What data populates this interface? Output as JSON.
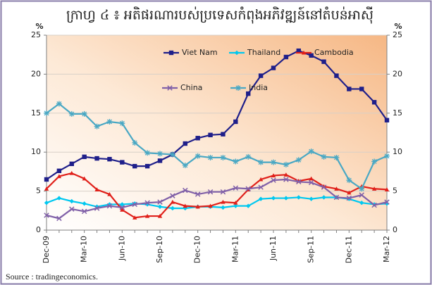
{
  "chart_data": {
    "type": "line",
    "title": "ក្រាហ្វ ៤ ៖ អតិផរណារបស់ប្រទេសកំពុងអភិវឌ្ឍន៍នៅតំបន់អាស៊ី",
    "y_label": "%",
    "y2_label": "%",
    "source": "Source : tradingeconomics.",
    "categories": [
      "Dec-09",
      null,
      null,
      "Mar-10",
      null,
      null,
      "Jun-10",
      null,
      null,
      "Sep-10",
      null,
      null,
      "Dec-10",
      null,
      null,
      "Mar-11",
      null,
      null,
      "Jun-11",
      null,
      null,
      "Sep-11",
      null,
      null,
      "Dec-11",
      null,
      null,
      "Mar-12"
    ],
    "ylim": [
      0,
      25
    ],
    "yticks": [
      0,
      5,
      10,
      15,
      20,
      25
    ],
    "y2lim": [
      0,
      25
    ],
    "y2ticks": [
      0,
      5,
      10,
      15,
      20,
      25
    ],
    "grid": true,
    "series": [
      {
        "name": "Viet Nam",
        "color": "#1f1f8a",
        "marker": "square",
        "values": [
          6.5,
          7.6,
          8.5,
          9.4,
          9.2,
          9.1,
          8.7,
          8.2,
          8.2,
          8.9,
          9.7,
          11.1,
          11.8,
          12.2,
          12.3,
          13.9,
          17.5,
          19.8,
          20.8,
          22.2,
          23.0,
          22.4,
          21.6,
          19.8,
          18.1,
          18.1,
          16.4,
          14.1
        ]
      },
      {
        "name": "Thailand",
        "color": "#00c8f0",
        "marker": "diamond",
        "values": [
          3.5,
          4.1,
          3.7,
          3.4,
          3.0,
          3.3,
          3.3,
          3.4,
          3.3,
          3.0,
          2.8,
          2.8,
          3.0,
          3.0,
          2.9,
          3.1,
          3.1,
          4.0,
          4.1,
          4.1,
          4.2,
          4.0,
          4.2,
          4.2,
          4.0,
          3.5,
          3.3,
          3.4
        ]
      },
      {
        "name": "Cambodia",
        "color": "#e0201a",
        "marker": "triangle",
        "values": [
          5.3,
          6.9,
          7.3,
          6.6,
          5.2,
          4.6,
          2.6,
          1.6,
          1.8,
          1.8,
          3.6,
          3.1,
          3.0,
          3.1,
          3.6,
          3.5,
          5.2,
          6.5,
          7.0,
          7.1,
          6.3,
          6.6,
          5.6,
          5.3,
          4.8,
          5.6,
          5.3,
          5.2
        ]
      },
      {
        "name": "China",
        "color": "#8060a8",
        "marker": "x",
        "values": [
          1.9,
          1.5,
          2.7,
          2.4,
          2.8,
          3.1,
          2.9,
          3.3,
          3.5,
          3.6,
          4.4,
          5.1,
          4.6,
          4.9,
          4.9,
          5.4,
          5.3,
          5.5,
          6.4,
          6.5,
          6.2,
          6.1,
          5.5,
          4.2,
          4.1,
          4.5,
          3.2,
          3.6
        ]
      },
      {
        "name": "India",
        "color": "#4aa8c4",
        "marker": "star",
        "values": [
          15.0,
          16.2,
          14.9,
          14.9,
          13.3,
          13.9,
          13.7,
          11.2,
          9.9,
          9.8,
          9.7,
          8.3,
          9.5,
          9.3,
          9.3,
          8.8,
          9.4,
          8.7,
          8.7,
          8.4,
          9.0,
          10.1,
          9.4,
          9.3,
          6.4,
          5.3,
          8.8,
          9.5
        ]
      }
    ]
  }
}
